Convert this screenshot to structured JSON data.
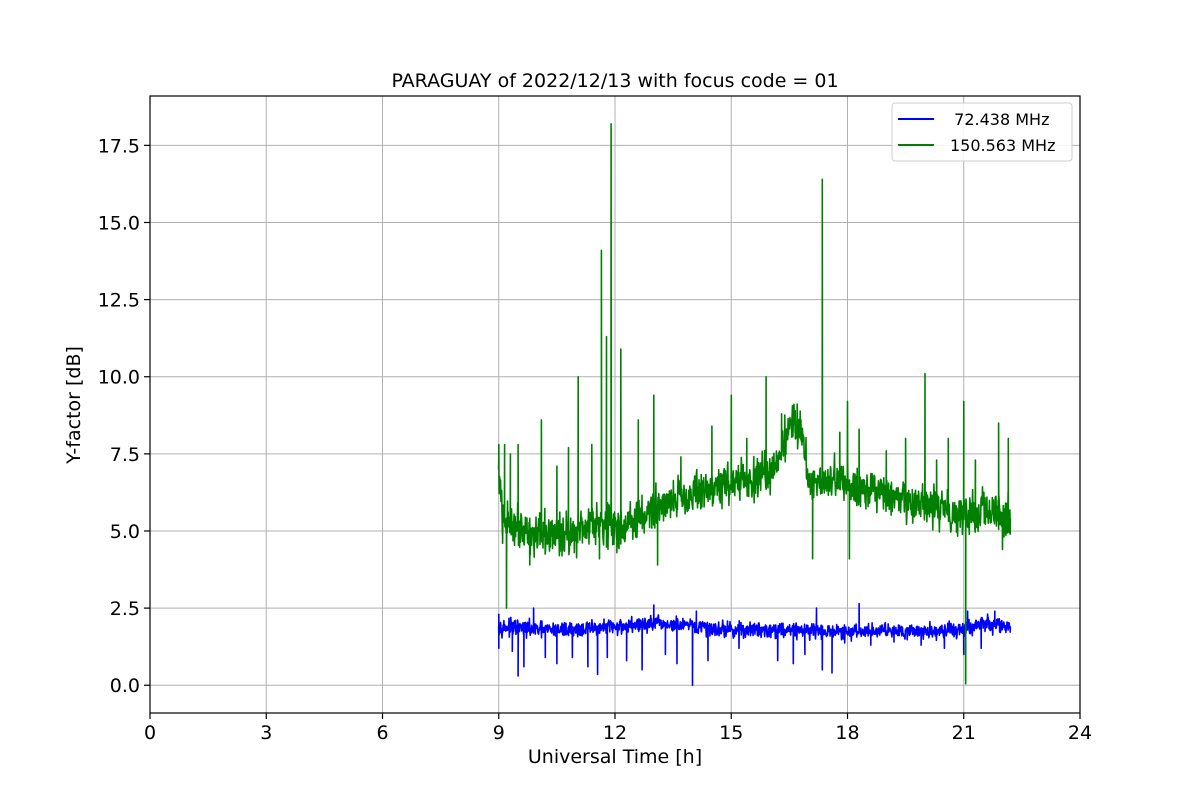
{
  "chart_data": {
    "type": "line",
    "title": "PARAGUAY of 2022/12/13 with focus code = 01",
    "xlabel": "Universal Time [h]",
    "ylabel": "Y-factor [dB]",
    "xlim": [
      0,
      24
    ],
    "ylim": [
      -0.9,
      19.1
    ],
    "xticks": [
      0,
      3,
      6,
      9,
      12,
      15,
      18,
      21,
      24
    ],
    "xtick_labels": [
      "0",
      "3",
      "6",
      "9",
      "12",
      "15",
      "18",
      "21",
      "24"
    ],
    "yticks": [
      0.0,
      2.5,
      5.0,
      7.5,
      10.0,
      12.5,
      15.0,
      17.5
    ],
    "ytick_labels": [
      "0.0",
      "2.5",
      "5.0",
      "7.5",
      "10.0",
      "12.5",
      "15.0",
      "17.5"
    ],
    "grid": true,
    "legend_position": "top-right",
    "series": [
      {
        "name": "  72.438 MHz",
        "color": "#0000ff",
        "base": [
          [
            9.0,
            1.9
          ],
          [
            10.0,
            1.8
          ],
          [
            11.0,
            1.8
          ],
          [
            12.0,
            1.9
          ],
          [
            13.0,
            2.0
          ],
          [
            14.0,
            1.9
          ],
          [
            15.0,
            1.8
          ],
          [
            16.0,
            1.8
          ],
          [
            17.0,
            1.8
          ],
          [
            18.0,
            1.7
          ],
          [
            19.0,
            1.8
          ],
          [
            20.0,
            1.75
          ],
          [
            21.0,
            1.8
          ],
          [
            21.5,
            2.0
          ],
          [
            22.2,
            1.9
          ]
        ],
        "spread": 0.45,
        "spikes": [
          [
            9.0,
            1.2
          ],
          [
            9.0,
            2.3
          ],
          [
            9.35,
            1.1
          ],
          [
            9.5,
            0.3
          ],
          [
            9.65,
            0.6
          ],
          [
            9.9,
            2.5
          ],
          [
            10.2,
            0.9
          ],
          [
            10.5,
            0.7
          ],
          [
            10.9,
            0.9
          ],
          [
            11.3,
            0.6
          ],
          [
            11.55,
            0.35
          ],
          [
            11.8,
            0.9
          ],
          [
            12.3,
            0.8
          ],
          [
            12.7,
            0.5
          ],
          [
            13.0,
            2.6
          ],
          [
            13.3,
            1.0
          ],
          [
            13.6,
            0.7
          ],
          [
            14.0,
            0.0
          ],
          [
            14.1,
            2.4
          ],
          [
            14.4,
            0.8
          ],
          [
            15.2,
            1.2
          ],
          [
            16.2,
            0.8
          ],
          [
            16.6,
            0.7
          ],
          [
            16.9,
            1.0
          ],
          [
            17.2,
            2.5
          ],
          [
            17.35,
            0.5
          ],
          [
            17.6,
            0.4
          ],
          [
            18.3,
            2.65
          ],
          [
            18.6,
            1.3
          ],
          [
            19.2,
            1.4
          ],
          [
            19.9,
            1.3
          ],
          [
            20.5,
            1.2
          ],
          [
            21.0,
            1.0
          ],
          [
            21.1,
            2.4
          ],
          [
            21.45,
            1.2
          ],
          [
            21.8,
            2.4
          ],
          [
            22.2,
            1.8
          ]
        ]
      },
      {
        "name": "150.563 MHz",
        "color": "#008000",
        "base": [
          [
            9.0,
            7.0
          ],
          [
            9.1,
            5.3
          ],
          [
            9.5,
            5.2
          ],
          [
            10.0,
            4.8
          ],
          [
            10.5,
            4.9
          ],
          [
            11.0,
            5.0
          ],
          [
            11.5,
            5.4
          ],
          [
            12.0,
            5.1
          ],
          [
            12.5,
            5.3
          ],
          [
            13.0,
            5.7
          ],
          [
            13.5,
            6.1
          ],
          [
            14.0,
            6.2
          ],
          [
            14.5,
            6.4
          ],
          [
            15.0,
            6.6
          ],
          [
            15.5,
            6.6
          ],
          [
            16.0,
            6.9
          ],
          [
            16.3,
            7.6
          ],
          [
            16.5,
            8.5
          ],
          [
            16.8,
            8.4
          ],
          [
            17.0,
            6.6
          ],
          [
            17.5,
            6.7
          ],
          [
            18.0,
            6.5
          ],
          [
            18.5,
            6.4
          ],
          [
            19.0,
            6.1
          ],
          [
            19.5,
            5.9
          ],
          [
            20.0,
            5.8
          ],
          [
            20.5,
            5.7
          ],
          [
            21.0,
            5.6
          ],
          [
            21.5,
            5.6
          ],
          [
            22.2,
            5.4
          ]
        ],
        "spread": 1.2,
        "spikes": [
          [
            9.0,
            7.8
          ],
          [
            9.15,
            7.8
          ],
          [
            9.1,
            4.6
          ],
          [
            9.2,
            2.5
          ],
          [
            9.3,
            7.5
          ],
          [
            9.5,
            7.8
          ],
          [
            9.8,
            3.9
          ],
          [
            10.1,
            8.6
          ],
          [
            10.5,
            7.1
          ],
          [
            10.8,
            7.7
          ],
          [
            10.95,
            4.3
          ],
          [
            11.05,
            10.0
          ],
          [
            11.4,
            7.8
          ],
          [
            11.6,
            4.1
          ],
          [
            11.65,
            14.1
          ],
          [
            11.78,
            11.3
          ],
          [
            11.9,
            18.2
          ],
          [
            12.05,
            4.3
          ],
          [
            12.15,
            10.9
          ],
          [
            12.6,
            8.6
          ],
          [
            13.0,
            9.4
          ],
          [
            13.1,
            3.9
          ],
          [
            13.7,
            7.4
          ],
          [
            14.5,
            8.4
          ],
          [
            15.0,
            9.4
          ],
          [
            15.4,
            8.0
          ],
          [
            15.9,
            10.0
          ],
          [
            16.3,
            8.8
          ],
          [
            16.65,
            8.9
          ],
          [
            17.1,
            4.1
          ],
          [
            17.35,
            16.4
          ],
          [
            17.8,
            8.2
          ],
          [
            18.0,
            9.2
          ],
          [
            18.05,
            4.1
          ],
          [
            18.3,
            8.3
          ],
          [
            19.0,
            7.6
          ],
          [
            19.5,
            8.0
          ],
          [
            20.0,
            10.1
          ],
          [
            20.3,
            7.3
          ],
          [
            20.6,
            8.0
          ],
          [
            21.0,
            9.2
          ],
          [
            21.05,
            0.05
          ],
          [
            21.3,
            7.3
          ],
          [
            21.9,
            8.5
          ],
          [
            22.0,
            4.4
          ],
          [
            22.15,
            8.0
          ],
          [
            22.2,
            4.9
          ]
        ]
      }
    ]
  }
}
